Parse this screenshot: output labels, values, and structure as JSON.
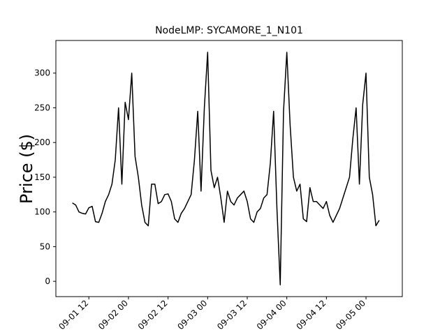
{
  "chart_data": {
    "type": "line",
    "title": "NodeLMP: SYCAMORE_1_N101",
    "y_label": "Price ($)",
    "x": [
      "09-01 07",
      "09-01 08",
      "09-01 09",
      "09-01 10",
      "09-01 11",
      "09-01 12",
      "09-01 13",
      "09-01 14",
      "09-01 15",
      "09-01 16",
      "09-01 17",
      "09-01 18",
      "09-01 19",
      "09-01 20",
      "09-01 21",
      "09-01 22",
      "09-01 23",
      "09-02 00",
      "09-02 01",
      "09-02 02",
      "09-02 03",
      "09-02 04",
      "09-02 05",
      "09-02 06",
      "09-02 07",
      "09-02 08",
      "09-02 09",
      "09-02 10",
      "09-02 11",
      "09-02 12",
      "09-02 13",
      "09-02 14",
      "09-02 15",
      "09-02 16",
      "09-02 17",
      "09-02 18",
      "09-02 19",
      "09-02 20",
      "09-02 21",
      "09-02 22",
      "09-02 23",
      "09-03 00",
      "09-03 01",
      "09-03 02",
      "09-03 03",
      "09-03 04",
      "09-03 05",
      "09-03 06",
      "09-03 07",
      "09-03 08",
      "09-03 09",
      "09-03 10",
      "09-03 11",
      "09-03 12",
      "09-03 13",
      "09-03 14",
      "09-03 15",
      "09-03 16",
      "09-03 17",
      "09-03 18",
      "09-03 19",
      "09-03 20",
      "09-03 21",
      "09-03 22",
      "09-03 23",
      "09-04 00",
      "09-04 01",
      "09-04 02",
      "09-04 03",
      "09-04 04",
      "09-04 05",
      "09-04 06",
      "09-04 07",
      "09-04 08",
      "09-04 09",
      "09-04 10",
      "09-04 11",
      "09-04 12",
      "09-04 13",
      "09-04 14",
      "09-04 15",
      "09-04 16",
      "09-04 17",
      "09-04 18",
      "09-04 19",
      "09-04 20",
      "09-04 21",
      "09-04 22",
      "09-04 23",
      "09-05 00",
      "09-05 01",
      "09-05 02",
      "09-05 03",
      "09-05 04"
    ],
    "series": [
      {
        "color": "#000000",
        "values": [
          113,
          110,
          100,
          98,
          97,
          106,
          108,
          86,
          85,
          98,
          115,
          125,
          140,
          175,
          250,
          140,
          258,
          233,
          300,
          180,
          150,
          110,
          85,
          80,
          140,
          140,
          112,
          115,
          125,
          126,
          115,
          90,
          85,
          98,
          105,
          115,
          125,
          175,
          245,
          130,
          250,
          330,
          160,
          135,
          150,
          120,
          85,
          130,
          115,
          110,
          120,
          125,
          130,
          115,
          90,
          85,
          100,
          105,
          120,
          125,
          170,
          245,
          105,
          -5,
          245,
          330,
          225,
          150,
          130,
          140,
          90,
          86,
          135,
          115,
          115,
          110,
          105,
          115,
          95,
          85,
          95,
          105,
          120,
          135,
          150,
          205,
          250,
          140,
          255,
          300,
          150,
          125,
          80,
          88
        ]
      }
    ],
    "xlim": [
      "09-01 02",
      "09-05 11"
    ],
    "xticks": [
      "09-01 12",
      "09-02 00",
      "09-02 12",
      "09-03 00",
      "09-03 12",
      "09-04 00",
      "09-04 12",
      "09-05 00"
    ],
    "ylim": [
      -22,
      347
    ],
    "yticks": [
      0,
      50,
      100,
      150,
      200,
      250,
      300
    ],
    "grid": false
  }
}
